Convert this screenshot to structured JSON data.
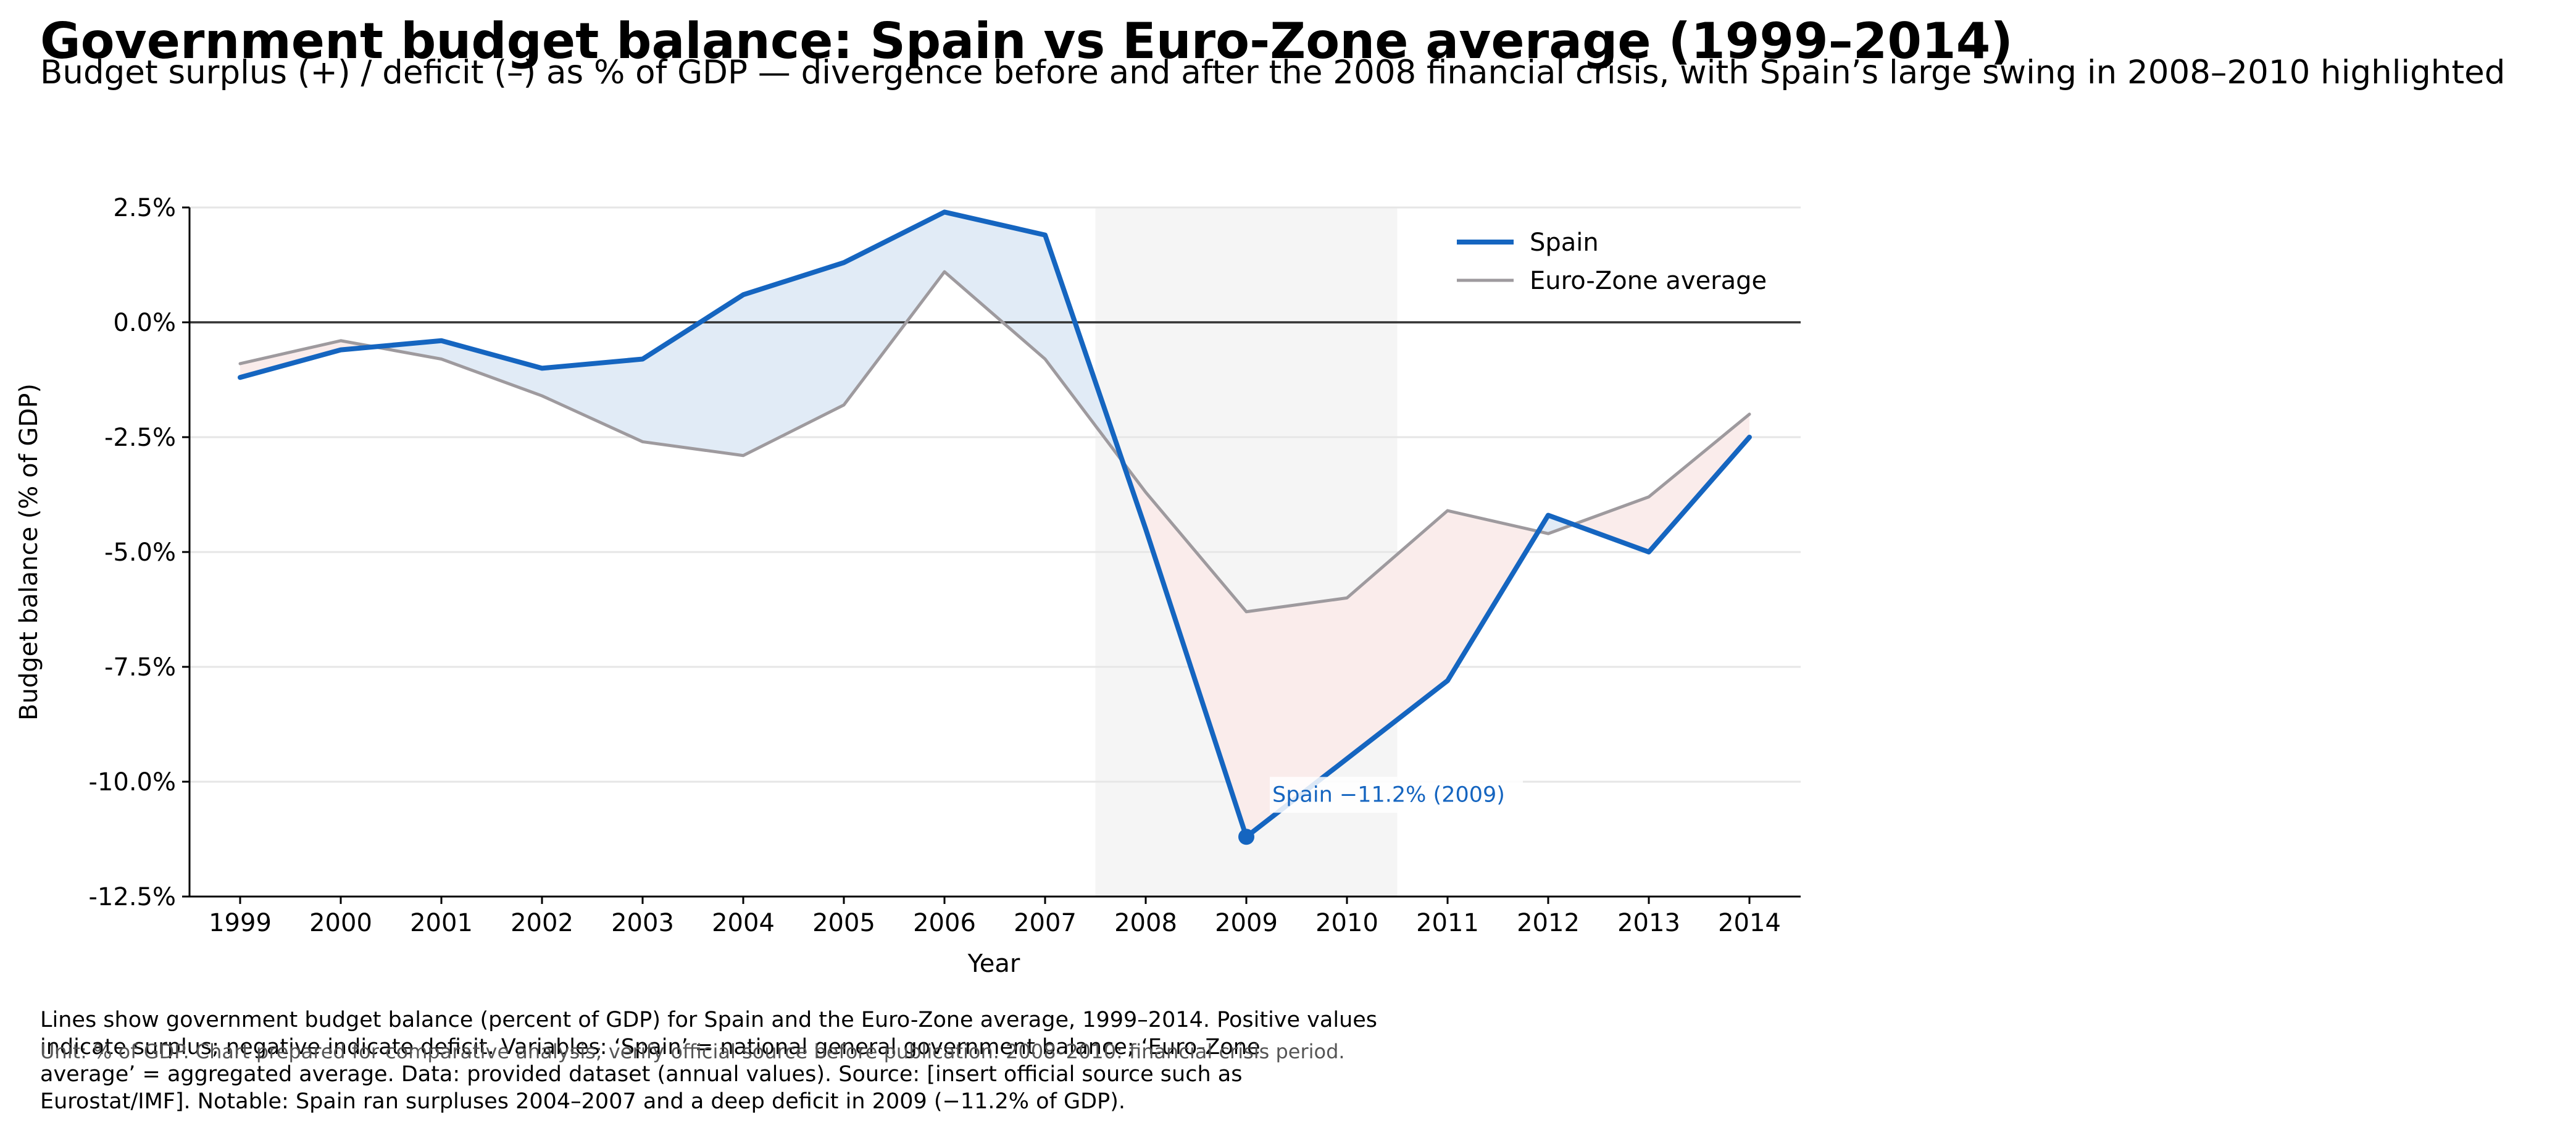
{
  "chart_data": {
    "type": "line",
    "title": "Government budget balance: Spain vs Euro-Zone average (1999–2014)",
    "subtitle": "Budget surplus (+) / deficit (–) as % of GDP — divergence before and after the 2008 financial crisis, with Spain’s large swing in 2008–2010 highlighted",
    "xlabel": "Year",
    "ylabel": "Budget balance (% of GDP)",
    "x": [
      "1999",
      "2000",
      "2001",
      "2002",
      "2003",
      "2004",
      "2005",
      "2006",
      "2007",
      "2008",
      "2009",
      "2010",
      "2011",
      "2012",
      "2013",
      "2014"
    ],
    "ylim": [
      -12.5,
      2.5
    ],
    "yticks": [
      2.5,
      0.0,
      -2.5,
      -5.0,
      -7.5,
      -10.0,
      -12.5
    ],
    "ytick_labels": [
      "2.5%",
      "0.0%",
      "-2.5%",
      "-5.0%",
      "-7.5%",
      "-10.0%",
      "-12.5%"
    ],
    "series": [
      {
        "name": "Spain",
        "color": "#1565c0",
        "values": [
          -1.2,
          -0.6,
          -0.4,
          -1.0,
          -0.8,
          0.6,
          1.3,
          2.4,
          1.9,
          -4.5,
          -11.2,
          -9.5,
          -7.8,
          -4.2,
          -5.0,
          -2.5
        ]
      },
      {
        "name": "Euro-Zone average",
        "color": "#9e9a9e",
        "values": [
          -0.9,
          -0.4,
          -0.8,
          -1.6,
          -2.6,
          -2.9,
          -1.8,
          1.1,
          -0.8,
          -3.7,
          -6.3,
          -6.0,
          -4.1,
          -4.6,
          -3.8,
          -2.0
        ]
      }
    ],
    "highlight_span": [
      "2008",
      "2010"
    ],
    "highlight_color": "#f5f5f5",
    "fill_above_color": "#e1ebf6",
    "fill_below_color": "#faeceb",
    "annotation": {
      "text": "Spain −11.2% (2009)",
      "x": "2009",
      "y": -11.2
    },
    "legend_position": "top-right",
    "grid": "horizontal"
  },
  "caption": [
    "Lines show government budget balance (percent of GDP) for Spain and the Euro-Zone average, 1999–2014. Positive values",
    "indicate surplus; negative indicate deficit. Variables: ‘Spain’ = national general government balance; ‘Euro-Zone",
    "average’ = aggregated average. Data: provided dataset (annual values). Source: [insert official source such as",
    "Eurostat/IMF]. Notable: Spain ran surpluses 2004–2007 and a deep deficit in 2009 (−11.2% of GDP)."
  ],
  "note": "Unit: % of GDP. Chart prepared for comparative analysis; verify official source before publication. 2008–2010: financial crisis period."
}
